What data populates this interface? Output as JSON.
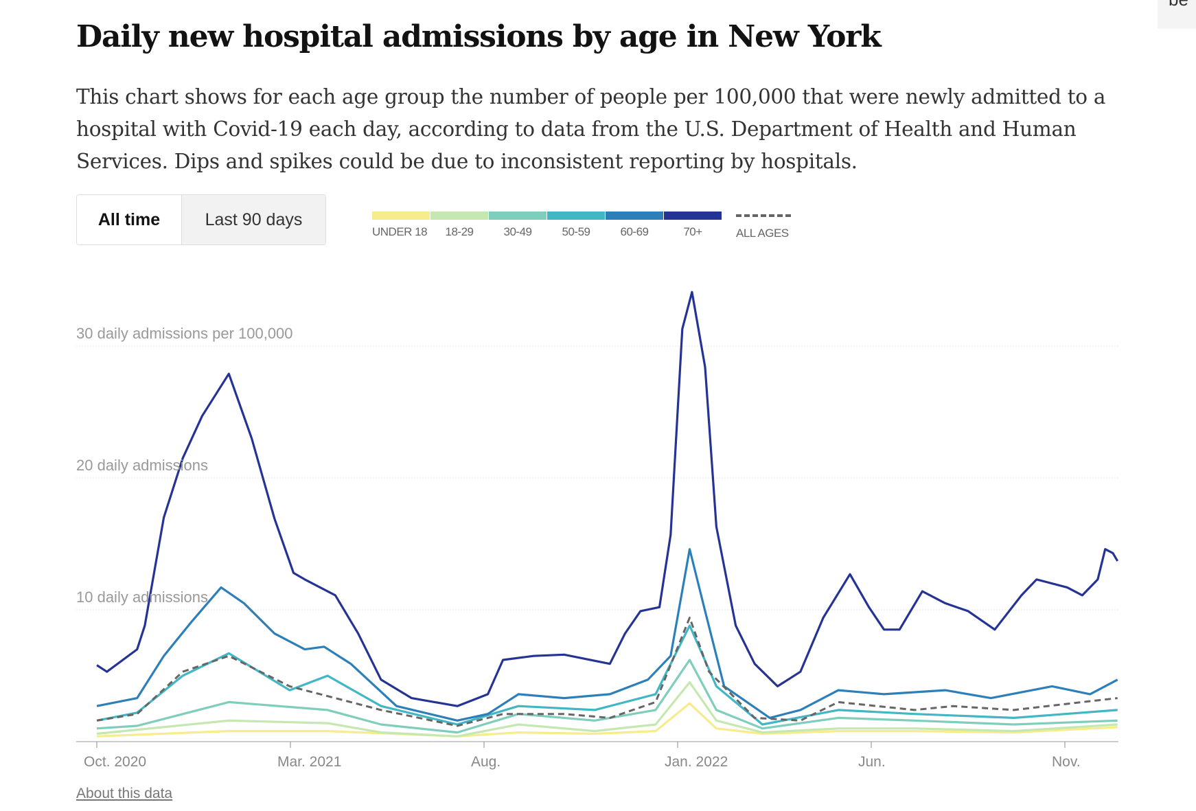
{
  "header": {
    "title": "Daily new hospital admissions by age in New York",
    "description": "This chart shows for each age group the number of people per 100,000 that were newly admitted to a hospital with Covid-19 each day, according to data from the U.S. Department of Health and Human Services. Dips and spikes could be due to inconsistent reporting by hospitals."
  },
  "toggle": {
    "all_time": "All time",
    "last_90": "Last 90 days",
    "selected": "All time"
  },
  "corner_text": "be",
  "footer": {
    "about_link": "About this data"
  },
  "chart_data": {
    "type": "line",
    "title": "Daily new hospital admissions by age in New York",
    "ylabel": "daily admissions per 100,000",
    "x_unit": "months since Oct. 2020",
    "xlim": [
      0,
      26.4
    ],
    "ylim": [
      0,
      35
    ],
    "y_ticks": [
      {
        "value": 10,
        "label": "10 daily admissions"
      },
      {
        "value": 20,
        "label": "20 daily admissions"
      },
      {
        "value": 30,
        "label": "30 daily admissions per 100,000"
      }
    ],
    "x_ticks": [
      {
        "value": 0,
        "label": "Oct. 2020"
      },
      {
        "value": 5,
        "label": "Mar. 2021"
      },
      {
        "value": 10,
        "label": "Aug."
      },
      {
        "value": 15,
        "label": "Jan. 2022"
      },
      {
        "value": 20,
        "label": "Jun."
      },
      {
        "value": 25,
        "label": "Nov."
      }
    ],
    "grid": true,
    "legend_placement": "top",
    "series": [
      {
        "name": "UNDER 18",
        "color": "#f7ec8d",
        "points": [
          [
            0,
            0.4
          ],
          [
            3.41,
            0.8
          ],
          [
            5.96,
            0.8
          ],
          [
            9.31,
            0.4
          ],
          [
            10.89,
            0.7
          ],
          [
            12.86,
            0.6
          ],
          [
            14.43,
            0.8
          ],
          [
            15.31,
            2.9
          ],
          [
            16.0,
            1.0
          ],
          [
            17.19,
            0.6
          ],
          [
            19.15,
            0.8
          ],
          [
            21.12,
            0.8
          ],
          [
            23.68,
            0.7
          ],
          [
            26.36,
            1.1
          ]
        ]
      },
      {
        "name": "18-29",
        "color": "#c5e8b0",
        "points": [
          [
            0,
            0.6
          ],
          [
            3.41,
            1.6
          ],
          [
            5.96,
            1.4
          ],
          [
            7.34,
            0.7
          ],
          [
            9.31,
            0.4
          ],
          [
            10.89,
            1.3
          ],
          [
            12.86,
            0.8
          ],
          [
            14.43,
            1.3
          ],
          [
            15.31,
            4.5
          ],
          [
            16.0,
            1.6
          ],
          [
            17.19,
            0.7
          ],
          [
            19.15,
            1.0
          ],
          [
            21.12,
            1.0
          ],
          [
            23.68,
            0.8
          ],
          [
            26.36,
            1.3
          ]
        ]
      },
      {
        "name": "30-49",
        "color": "#7fcdbb",
        "points": [
          [
            0,
            1.0
          ],
          [
            1.04,
            1.2
          ],
          [
            3.41,
            3.0
          ],
          [
            5.96,
            2.4
          ],
          [
            7.34,
            1.3
          ],
          [
            9.31,
            0.7
          ],
          [
            10.89,
            2.1
          ],
          [
            12.86,
            1.6
          ],
          [
            14.43,
            2.4
          ],
          [
            15.31,
            6.2
          ],
          [
            16.0,
            2.4
          ],
          [
            17.19,
            1.0
          ],
          [
            19.15,
            1.8
          ],
          [
            21.12,
            1.6
          ],
          [
            23.68,
            1.3
          ],
          [
            26.36,
            1.6
          ]
        ]
      },
      {
        "name": "50-59",
        "color": "#41b6c4",
        "points": [
          [
            0,
            1.6
          ],
          [
            1.04,
            2.2
          ],
          [
            2.22,
            5.0
          ],
          [
            3.41,
            6.7
          ],
          [
            4.98,
            3.9
          ],
          [
            5.96,
            5.0
          ],
          [
            7.34,
            2.7
          ],
          [
            9.31,
            1.3
          ],
          [
            10.89,
            2.7
          ],
          [
            12.86,
            2.4
          ],
          [
            14.43,
            3.6
          ],
          [
            15.31,
            8.8
          ],
          [
            16.0,
            4.2
          ],
          [
            17.19,
            1.3
          ],
          [
            19.15,
            2.4
          ],
          [
            21.12,
            2.1
          ],
          [
            23.68,
            1.8
          ],
          [
            26.36,
            2.4
          ]
        ]
      },
      {
        "name": "60-69",
        "color": "#2c7fb8",
        "points": [
          [
            0,
            2.7
          ],
          [
            1.04,
            3.3
          ],
          [
            1.73,
            6.5
          ],
          [
            2.42,
            9.0
          ],
          [
            3.21,
            11.7
          ],
          [
            3.8,
            10.5
          ],
          [
            4.59,
            8.2
          ],
          [
            5.37,
            7.0
          ],
          [
            5.87,
            7.2
          ],
          [
            6.56,
            5.9
          ],
          [
            7.74,
            2.7
          ],
          [
            9.31,
            1.6
          ],
          [
            10.1,
            2.1
          ],
          [
            10.89,
            3.6
          ],
          [
            12.07,
            3.3
          ],
          [
            13.25,
            3.6
          ],
          [
            14.23,
            4.7
          ],
          [
            14.82,
            6.5
          ],
          [
            15.31,
            14.6
          ],
          [
            15.71,
            9.9
          ],
          [
            16.2,
            4.2
          ],
          [
            17.38,
            1.8
          ],
          [
            18.17,
            2.4
          ],
          [
            19.15,
            3.9
          ],
          [
            20.33,
            3.6
          ],
          [
            21.91,
            3.9
          ],
          [
            23.09,
            3.3
          ],
          [
            24.67,
            4.2
          ],
          [
            25.65,
            3.6
          ],
          [
            26.36,
            4.7
          ]
        ]
      },
      {
        "name": "70+",
        "color": "#253494",
        "points": [
          [
            0,
            5.8
          ],
          [
            0.26,
            5.3
          ],
          [
            1.04,
            7.0
          ],
          [
            1.24,
            8.8
          ],
          [
            1.73,
            17.0
          ],
          [
            2.22,
            21.5
          ],
          [
            2.72,
            24.7
          ],
          [
            3.41,
            27.9
          ],
          [
            4.0,
            23.0
          ],
          [
            4.59,
            16.9
          ],
          [
            5.08,
            12.8
          ],
          [
            5.37,
            12.3
          ],
          [
            6.16,
            11.1
          ],
          [
            6.75,
            8.2
          ],
          [
            7.34,
            4.7
          ],
          [
            8.13,
            3.3
          ],
          [
            9.31,
            2.7
          ],
          [
            10.1,
            3.6
          ],
          [
            10.49,
            6.2
          ],
          [
            11.28,
            6.5
          ],
          [
            12.07,
            6.6
          ],
          [
            13.25,
            5.9
          ],
          [
            13.64,
            8.2
          ],
          [
            14.04,
            9.9
          ],
          [
            14.53,
            10.2
          ],
          [
            14.82,
            15.7
          ],
          [
            15.12,
            31.3
          ],
          [
            15.37,
            34.1
          ],
          [
            15.71,
            28.4
          ],
          [
            16.0,
            16.3
          ],
          [
            16.5,
            8.8
          ],
          [
            16.99,
            5.9
          ],
          [
            17.58,
            4.2
          ],
          [
            18.17,
            5.3
          ],
          [
            18.76,
            9.4
          ],
          [
            19.45,
            12.7
          ],
          [
            19.94,
            10.2
          ],
          [
            20.33,
            8.5
          ],
          [
            20.73,
            8.5
          ],
          [
            21.32,
            11.4
          ],
          [
            21.91,
            10.5
          ],
          [
            22.5,
            9.9
          ],
          [
            23.19,
            8.5
          ],
          [
            23.88,
            11.1
          ],
          [
            24.27,
            12.3
          ],
          [
            25.06,
            11.7
          ],
          [
            25.45,
            11.1
          ],
          [
            25.85,
            12.3
          ],
          [
            26.04,
            14.6
          ],
          [
            26.24,
            14.3
          ],
          [
            26.36,
            13.7
          ]
        ]
      },
      {
        "name": "ALL AGES",
        "color": "#666666",
        "dashed": true,
        "points": [
          [
            0,
            1.6
          ],
          [
            1.04,
            2.1
          ],
          [
            2.22,
            5.3
          ],
          [
            3.41,
            6.5
          ],
          [
            4.98,
            4.2
          ],
          [
            5.77,
            3.6
          ],
          [
            7.34,
            2.4
          ],
          [
            9.31,
            1.2
          ],
          [
            10.49,
            2.1
          ],
          [
            12.07,
            2.1
          ],
          [
            13.25,
            1.8
          ],
          [
            14.43,
            3.0
          ],
          [
            15.31,
            9.4
          ],
          [
            15.81,
            5.3
          ],
          [
            16.99,
            1.8
          ],
          [
            18.17,
            1.6
          ],
          [
            19.15,
            3.0
          ],
          [
            21.12,
            2.4
          ],
          [
            22.11,
            2.7
          ],
          [
            23.68,
            2.4
          ],
          [
            25.45,
            3.0
          ],
          [
            26.36,
            3.3
          ]
        ]
      }
    ]
  }
}
